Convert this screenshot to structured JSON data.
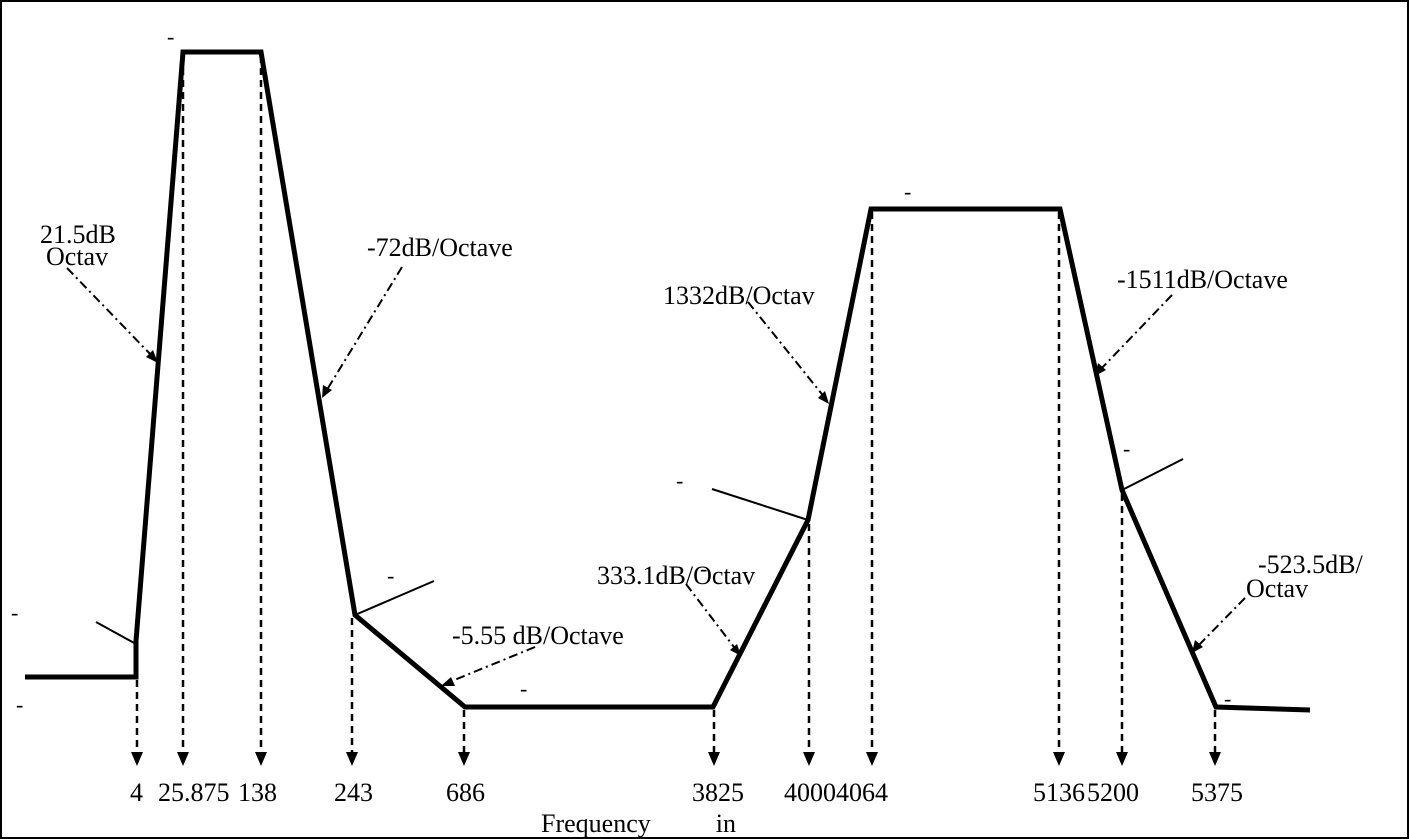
{
  "diagram": {
    "type": "filter-frequency-response",
    "axis_title": "Frequency          in",
    "frequencies": [
      "4",
      "25.875",
      "138",
      "243",
      "686",
      "3825",
      "4000",
      "4064",
      "5136",
      "5200",
      "5375"
    ],
    "slope_labels": [
      {
        "id": "slope-rise-1",
        "lines": [
          "21.5dB",
          "Octav"
        ]
      },
      {
        "id": "slope-fall-1",
        "lines": [
          "-72dB/Octave"
        ]
      },
      {
        "id": "slope-fall-2",
        "lines": [
          "-5.55 dB/Octave"
        ]
      },
      {
        "id": "slope-rise-2",
        "lines": [
          "333.1dB/Octav"
        ]
      },
      {
        "id": "slope-rise-3",
        "lines": [
          "1332dB/Octav"
        ]
      },
      {
        "id": "slope-fall-3",
        "lines": [
          "-1511dB/Octave"
        ]
      },
      {
        "id": "slope-fall-4",
        "lines": [
          "-523.5dB/",
          "Octav"
        ]
      }
    ],
    "level_marks": [
      "-",
      "-",
      "-",
      "-",
      "-",
      "-",
      "-",
      "-",
      "-",
      "-"
    ],
    "colors": {
      "line": "#000000",
      "background": "#ffffff",
      "border": "#000000"
    }
  }
}
